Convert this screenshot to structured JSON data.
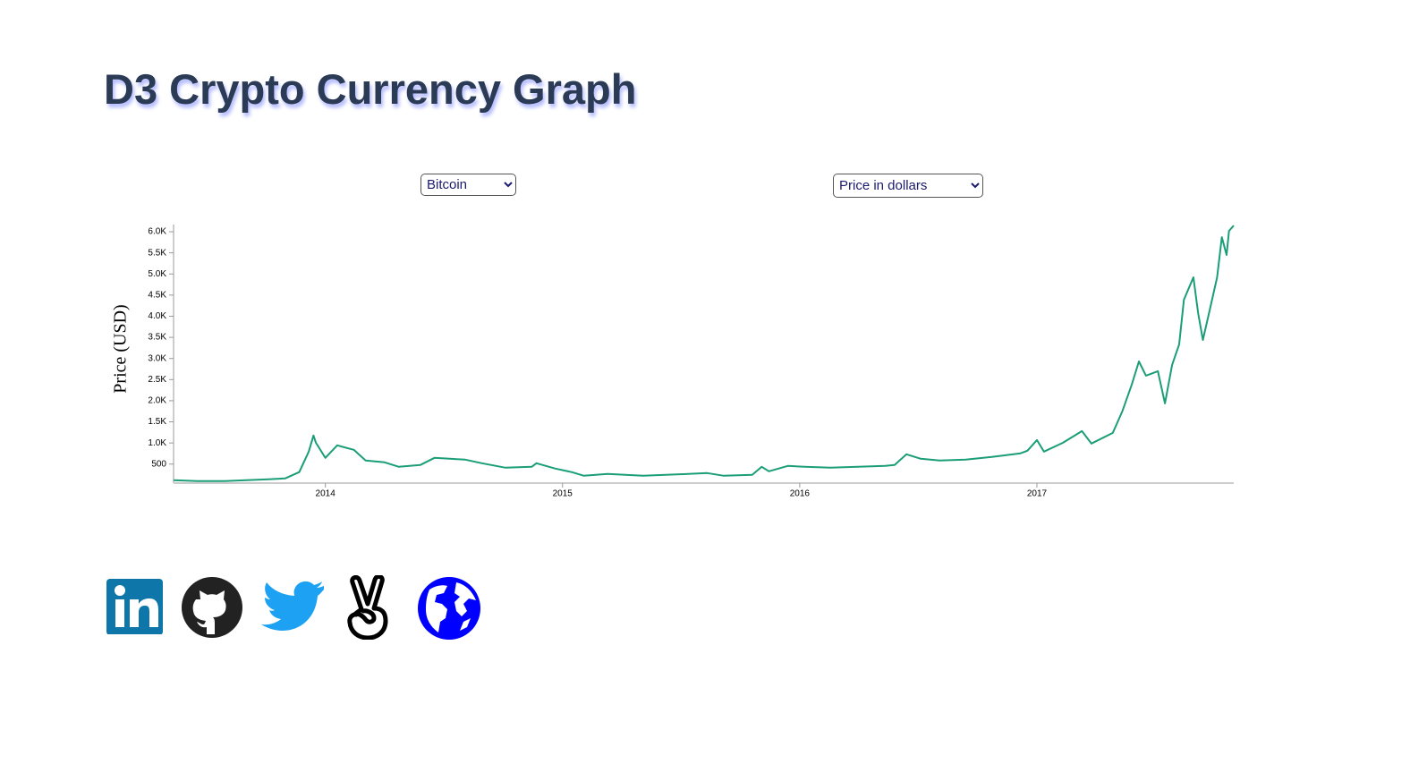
{
  "header": {
    "title": "D3 Crypto Currency Graph"
  },
  "controls": {
    "currency": "Bitcoin",
    "measure": "Price in dollars"
  },
  "chart_data": {
    "type": "line",
    "y_label": "Price (USD)",
    "color": "#1b9e77",
    "x": [
      2013.36,
      2013.46,
      2013.57,
      2013.76,
      2013.83,
      2013.89,
      2013.93,
      2013.95,
      2013.96,
      2014.0,
      2014.05,
      2014.12,
      2014.17,
      2014.25,
      2014.31,
      2014.4,
      2014.46,
      2014.59,
      2014.66,
      2014.76,
      2014.87,
      2014.89,
      2014.97,
      2015.04,
      2015.09,
      2015.19,
      2015.34,
      2015.53,
      2015.61,
      2015.68,
      2015.8,
      2015.84,
      2015.87,
      2015.95,
      2016.02,
      2016.13,
      2016.36,
      2016.4,
      2016.45,
      2016.51,
      2016.59,
      2016.7,
      2016.81,
      2016.93,
      2016.96,
      2017.0,
      2017.03,
      2017.11,
      2017.19,
      2017.23,
      2017.32,
      2017.36,
      2017.4,
      2017.43,
      2017.46,
      2017.51,
      2017.54,
      2017.57,
      2017.6,
      2017.62,
      2017.66,
      2017.68,
      2017.7,
      2017.73,
      2017.76,
      2017.78,
      2017.8,
      2017.81,
      2017.83
    ],
    "values": [
      118,
      97,
      97,
      140,
      160,
      310,
      795,
      1176,
      1006,
      647,
      943,
      838,
      584,
      541,
      436,
      478,
      647,
      605,
      520,
      414,
      436,
      520,
      393,
      309,
      224,
      266,
      224,
      266,
      288,
      224,
      245,
      436,
      330,
      457,
      436,
      414,
      457,
      478,
      732,
      626,
      584,
      605,
      668,
      753,
      816,
      1069,
      795,
      1006,
      1281,
      985,
      1239,
      1747,
      2381,
      2931,
      2593,
      2699,
      1937,
      2847,
      3334,
      4391,
      4920,
      4074,
      3439,
      4180,
      4920,
      5872,
      5449,
      6020,
      6147
    ],
    "xlim": [
      2013.36,
      2017.83
    ],
    "xticks": [
      2014,
      2015,
      2016,
      2017
    ],
    "ylim": [
      50,
      6170
    ],
    "yticks": [
      500,
      {
        "value": 1000,
        "label": "1.0K"
      },
      {
        "value": 1500,
        "label": "1.5K"
      },
      {
        "value": 2000,
        "label": "2.0K"
      },
      {
        "value": 2500,
        "label": "2.5K"
      },
      {
        "value": 3000,
        "label": "3.0K"
      },
      {
        "value": 3500,
        "label": "3.5K"
      },
      {
        "value": 4000,
        "label": "4.0K"
      },
      {
        "value": 4500,
        "label": "4.5K"
      },
      {
        "value": 5000,
        "label": "5.0K"
      },
      {
        "value": 5500,
        "label": "5.5K"
      },
      {
        "value": 6000,
        "label": "6.0K"
      }
    ]
  }
}
